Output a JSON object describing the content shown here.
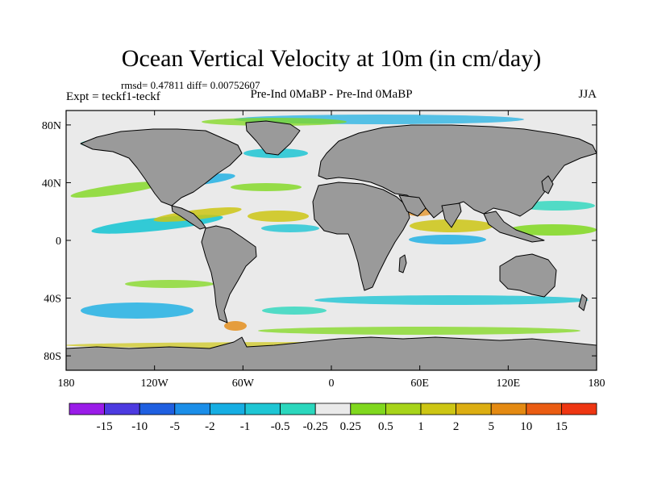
{
  "title": "Ocean Vertical Velocity at 10m (in cm/day)",
  "stats": "rmsd= 0.47811 diff= 0.00752607",
  "left_label": "Expt = teckf1-teckf",
  "center_label": "Pre-Ind 0MaBP - Pre-Ind 0MaBP",
  "season": "JJA",
  "map": {
    "projection": "cylindrical-equidistant",
    "lon_range": [
      -180,
      180
    ],
    "lat_range": [
      -90,
      90
    ],
    "lon_ticks": [
      {
        "value": -180,
        "label": "180"
      },
      {
        "value": -120,
        "label": "120W"
      },
      {
        "value": -60,
        "label": "60W"
      },
      {
        "value": 0,
        "label": "0"
      },
      {
        "value": 60,
        "label": "60E"
      },
      {
        "value": 120,
        "label": "120E"
      },
      {
        "value": 180,
        "label": "180"
      }
    ],
    "lat_ticks": [
      {
        "value": 80,
        "label": "80N"
      },
      {
        "value": 40,
        "label": "40N"
      },
      {
        "value": 0,
        "label": "0"
      },
      {
        "value": -40,
        "label": "40S"
      },
      {
        "value": -80,
        "label": "80S"
      }
    ],
    "colors": {
      "land": "#9a9a9a",
      "near_zero": "#eaeaea",
      "coast": "#000000"
    }
  },
  "colorbar": {
    "labels": [
      "-15",
      "-10",
      "-5",
      "-2",
      "-1",
      "-0.5",
      "-0.25",
      "0.25",
      "0.5",
      "1",
      "2",
      "5",
      "10",
      "15"
    ],
    "colors": [
      "#9a1ce8",
      "#4c3ae0",
      "#1f5fe0",
      "#1b8ee8",
      "#16aee3",
      "#1ec6d4",
      "#2bd7bd",
      "#eaeaea",
      "#80d81e",
      "#a7d41a",
      "#cdc614",
      "#dcae12",
      "#e48a12",
      "#ea5c12",
      "#ee3612"
    ]
  }
}
